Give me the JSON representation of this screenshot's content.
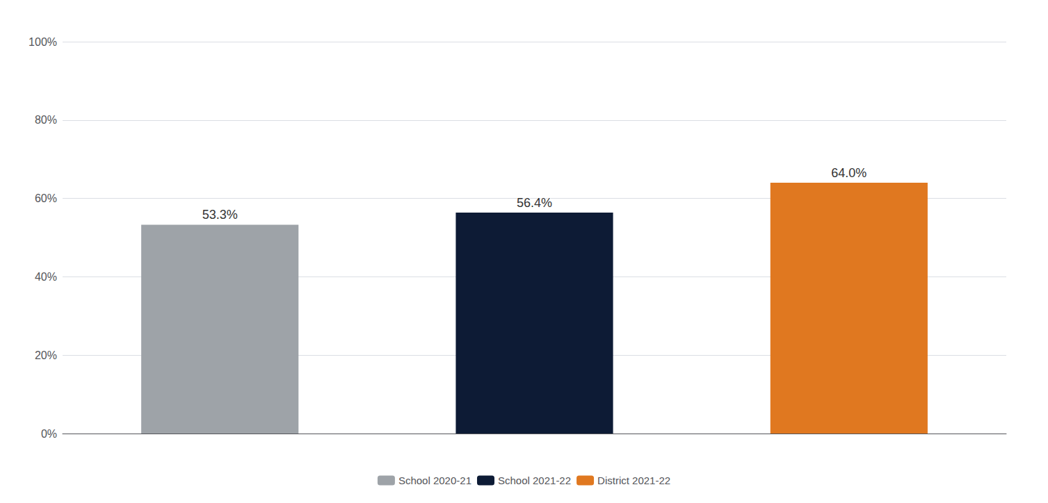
{
  "chart_data": {
    "type": "bar",
    "categories": [
      "School 2020-21",
      "School 2021-22",
      "District 2021-22"
    ],
    "values": [
      53.3,
      56.4,
      64.0
    ],
    "value_labels": [
      "53.3%",
      "56.4%",
      "64.0%"
    ],
    "colors": [
      "#9EA3A8",
      "#0D1B35",
      "#E07820"
    ],
    "ylim": [
      0,
      100
    ],
    "yticks": [
      {
        "value": 0,
        "label": "0%"
      },
      {
        "value": 20,
        "label": "20%"
      },
      {
        "value": 40,
        "label": "40%"
      },
      {
        "value": 60,
        "label": "60%"
      },
      {
        "value": 80,
        "label": "80%"
      },
      {
        "value": 100,
        "label": "100%"
      }
    ],
    "grid": true,
    "legend": "bottom",
    "data_labels": true,
    "tick_labels": "y"
  }
}
